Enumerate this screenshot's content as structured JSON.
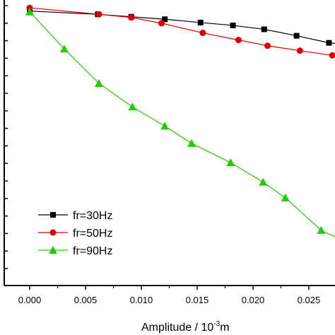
{
  "chart_data": {
    "type": "line",
    "title": "",
    "xlabel": "Amplitude / 10",
    "xlabel_sup": "-3",
    "xlabel_tail": "m",
    "ylabel": "",
    "xlim": [
      -0.0015,
      0.0289
    ],
    "ylim": [
      0,
      1
    ],
    "x_ticks": [
      0.0,
      0.005,
      0.01,
      0.015,
      0.02,
      0.025
    ],
    "x_tick_labels": [
      "0.000",
      "0.005",
      "0.010",
      "0.015",
      "0.020",
      "0.025"
    ],
    "y_minor_ticks": 17,
    "grid": false,
    "legend_position": "bottom-left",
    "series": [
      {
        "name": "fr=30Hz",
        "marker": "square",
        "color": "#000000",
        "x": [
          0.0,
          0.0061,
          0.0091,
          0.0121,
          0.0153,
          0.0182,
          0.021,
          0.0239,
          0.0268,
          0.0289
        ],
        "y": [
          0.9612,
          0.9499,
          0.9413,
          0.9325,
          0.921,
          0.9111,
          0.8974,
          0.8748,
          0.8499,
          0.8425
        ]
      },
      {
        "name": "fr=50Hz",
        "marker": "circle",
        "color": "#dd0000",
        "x": [
          0.0,
          0.0062,
          0.0091,
          0.0118,
          0.0155,
          0.0187,
          0.0213,
          0.0242,
          0.0271,
          0.0289
        ],
        "y": [
          0.9726,
          0.9499,
          0.9388,
          0.9186,
          0.8848,
          0.8599,
          0.8398,
          0.8226,
          0.8062,
          0.8016
        ]
      },
      {
        "name": "fr=90Hz",
        "marker": "triangle",
        "color": "#22cc00",
        "x": [
          0.0,
          0.0031,
          0.0062,
          0.0092,
          0.0121,
          0.0145,
          0.018,
          0.0209,
          0.0229,
          0.0261,
          0.0289
        ],
        "y": [
          0.9585,
          0.8287,
          0.708,
          0.6256,
          0.5584,
          0.4977,
          0.4306,
          0.3623,
          0.3073,
          0.1934,
          0.1422
        ]
      }
    ]
  }
}
